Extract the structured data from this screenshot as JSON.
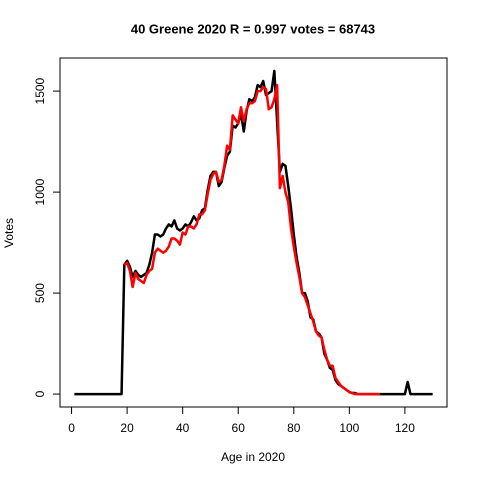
{
  "chart_data": {
    "type": "line",
    "title": "40 Greene 2020 R = 0.997 votes = 68743",
    "xlabel": "Age in 2020",
    "ylabel": "Votes",
    "x": [
      1,
      2,
      3,
      4,
      5,
      6,
      7,
      8,
      9,
      10,
      11,
      12,
      13,
      14,
      15,
      16,
      17,
      18,
      19,
      20,
      21,
      22,
      23,
      24,
      25,
      26,
      27,
      28,
      29,
      30,
      31,
      32,
      33,
      34,
      35,
      36,
      37,
      38,
      39,
      40,
      41,
      42,
      43,
      44,
      45,
      46,
      47,
      48,
      49,
      50,
      51,
      52,
      53,
      54,
      55,
      56,
      57,
      58,
      59,
      60,
      61,
      62,
      63,
      64,
      65,
      66,
      67,
      68,
      69,
      70,
      71,
      72,
      73,
      74,
      75,
      76,
      77,
      78,
      79,
      80,
      81,
      82,
      83,
      84,
      85,
      86,
      87,
      88,
      89,
      90,
      91,
      92,
      93,
      94,
      95,
      96,
      97,
      98,
      99,
      100,
      101,
      102,
      103,
      104,
      105,
      106,
      107,
      108,
      109,
      110,
      111,
      112,
      113,
      114,
      115,
      116,
      117,
      118,
      119,
      120,
      121,
      122,
      123,
      124,
      125,
      126,
      127,
      128,
      129,
      130
    ],
    "series": [
      {
        "color": "#000000",
        "values": [
          0,
          0,
          0,
          0,
          0,
          0,
          0,
          0,
          0,
          0,
          0,
          0,
          0,
          0,
          0,
          0,
          0,
          0,
          640,
          660,
          630,
          580,
          610,
          590,
          580,
          590,
          600,
          640,
          700,
          790,
          790,
          780,
          790,
          820,
          840,
          830,
          860,
          820,
          810,
          820,
          840,
          830,
          850,
          880,
          860,
          870,
          910,
          920,
          1010,
          1080,
          1100,
          1100,
          1030,
          1050,
          1120,
          1180,
          1200,
          1330,
          1320,
          1340,
          1390,
          1300,
          1400,
          1460,
          1450,
          1470,
          1530,
          1520,
          1550,
          1480,
          1490,
          1500,
          1600,
          1350,
          1100,
          1140,
          1130,
          1030,
          920,
          790,
          680,
          600,
          500,
          500,
          460,
          380,
          370,
          310,
          300,
          280,
          200,
          170,
          130,
          120,
          70,
          50,
          40,
          30,
          20,
          10,
          5,
          5,
          0,
          0,
          0,
          0,
          0,
          0,
          0,
          0,
          0,
          0,
          0,
          0,
          0,
          0,
          0,
          0,
          0,
          0,
          60,
          0,
          0,
          0,
          0,
          0,
          0,
          0,
          0,
          0
        ]
      },
      {
        "color": "#ff0000",
        "values": [
          null,
          null,
          null,
          null,
          null,
          null,
          null,
          null,
          null,
          null,
          null,
          null,
          null,
          null,
          null,
          null,
          null,
          null,
          640,
          650,
          610,
          530,
          600,
          570,
          560,
          550,
          590,
          610,
          620,
          700,
          720,
          710,
          700,
          710,
          730,
          770,
          770,
          760,
          740,
          800,
          790,
          830,
          830,
          820,
          840,
          890,
          890,
          910,
          990,
          1060,
          1090,
          1100,
          1050,
          1060,
          1130,
          1230,
          1210,
          1380,
          1360,
          1340,
          1420,
          1350,
          1410,
          1440,
          1440,
          1450,
          1500,
          1500,
          1520,
          1510,
          1410,
          1420,
          1460,
          1530,
          1020,
          1080,
          1000,
          950,
          820,
          730,
          650,
          580,
          500,
          480,
          440,
          400,
          360,
          310,
          290,
          280,
          220,
          170,
          140,
          140,
          80,
          60,
          40,
          30,
          20,
          10,
          5,
          0,
          0,
          0,
          0,
          0,
          0,
          0,
          0,
          0,
          0,
          null,
          null,
          null,
          null,
          null,
          null,
          null,
          null,
          null,
          null,
          null,
          null,
          null,
          null,
          null,
          null,
          null,
          null,
          null
        ]
      }
    ],
    "xlim": [
      -4.16,
      135.16
    ],
    "xticks": [
      0,
      20,
      40,
      60,
      80,
      100,
      120
    ],
    "ylim": [
      -64,
      1664
    ],
    "yticks": [
      0,
      500,
      1000,
      1500
    ]
  }
}
